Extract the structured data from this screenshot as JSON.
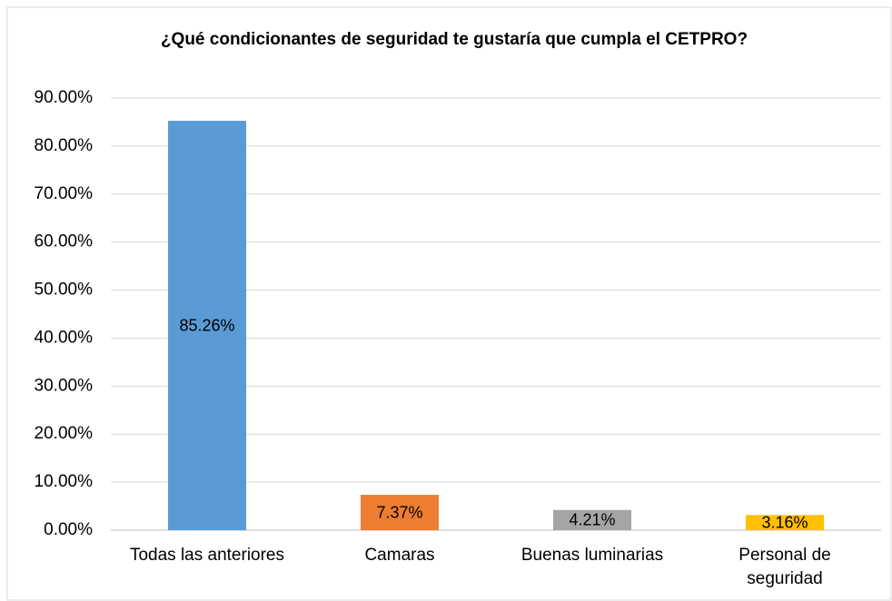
{
  "chart_data": {
    "type": "bar",
    "title": "¿Qué condicionantes de seguridad te gustaría que cumpla el CETPRO?",
    "categories": [
      "Todas las anteriores",
      "Camaras",
      "Buenas luminarias",
      "Personal de seguridad"
    ],
    "values": [
      85.26,
      7.37,
      4.21,
      3.16
    ],
    "value_labels": [
      "85.26%",
      "7.37%",
      "4.21%",
      "3.16%"
    ],
    "colors": [
      "#5b9bd5",
      "#ed7d31",
      "#a5a5a5",
      "#ffc000"
    ],
    "ylim": [
      0,
      90
    ],
    "yticks": [
      {
        "value": 0,
        "label": "0.00%"
      },
      {
        "value": 10,
        "label": "10.00%"
      },
      {
        "value": 20,
        "label": "20.00%"
      },
      {
        "value": 30,
        "label": "30.00%"
      },
      {
        "value": 40,
        "label": "40.00%"
      },
      {
        "value": 50,
        "label": "50.00%"
      },
      {
        "value": 60,
        "label": "60.00%"
      },
      {
        "value": 70,
        "label": "70.00%"
      },
      {
        "value": 80,
        "label": "80.00%"
      },
      {
        "value": 90,
        "label": "90.00%"
      }
    ],
    "grid": true
  }
}
